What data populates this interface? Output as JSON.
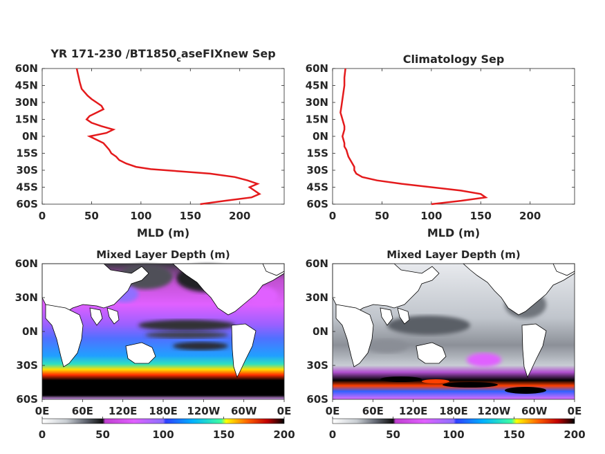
{
  "chart_data": [
    {
      "type": "line",
      "title": "YR 171-230 /BT1850",
      "title_sub": "c",
      "title_rest": "aseFIXnew Sep",
      "xlabel": "MLD (m)",
      "xlim": [
        0,
        245
      ],
      "ylim": [
        -60,
        60
      ],
      "xticks": [
        "0",
        "50",
        "100",
        "150",
        "200"
      ],
      "yticks": [
        "60N",
        "45N",
        "30N",
        "15N",
        "0N",
        "15S",
        "30S",
        "45S",
        "60S"
      ],
      "color": "#e41a1c",
      "series": [
        {
          "x": [
            160,
            185,
            212,
            220,
            215,
            210,
            218,
            208,
            195,
            170,
            140,
            110,
            95,
            85,
            78,
            75,
            70,
            68,
            65,
            62,
            55,
            48,
            65,
            72,
            60,
            50,
            45,
            48,
            55,
            62,
            60,
            55,
            50,
            46,
            40,
            38,
            37,
            36,
            35
          ],
          "y": [
            -60,
            -57,
            -54,
            -51,
            -48,
            -45,
            -42,
            -39,
            -36,
            -33,
            -31,
            -29,
            -27,
            -24,
            -21,
            -18,
            -15,
            -12,
            -9,
            -6,
            -3,
            0,
            3,
            6,
            9,
            12,
            15,
            18,
            21,
            24,
            27,
            30,
            33,
            36,
            42,
            48,
            52,
            56,
            60
          ]
        }
      ]
    },
    {
      "type": "line",
      "title": "Climatology Sep",
      "xlabel": "MLD (m)",
      "xlim": [
        0,
        245
      ],
      "ylim": [
        -60,
        60
      ],
      "xticks": [
        "0",
        "50",
        "100",
        "150",
        "200"
      ],
      "yticks": [
        "60N",
        "45N",
        "30N",
        "15N",
        "0N",
        "15S",
        "30S",
        "45S",
        "60S"
      ],
      "color": "#e41a1c",
      "series": [
        {
          "x": [
            100,
            130,
            155,
            150,
            130,
            100,
            70,
            45,
            30,
            24,
            22,
            22,
            20,
            18,
            16,
            15,
            14,
            12,
            12,
            11,
            10,
            11,
            12,
            12,
            11,
            10,
            9,
            8,
            9,
            10,
            11,
            12,
            12,
            13
          ],
          "y": [
            -60,
            -57,
            -54,
            -51,
            -48,
            -45,
            -42,
            -39,
            -36,
            -33,
            -30,
            -27,
            -24,
            -21,
            -18,
            -15,
            -12,
            -9,
            -6,
            -3,
            0,
            3,
            6,
            9,
            12,
            15,
            18,
            21,
            27,
            33,
            39,
            45,
            52,
            60
          ]
        }
      ]
    },
    {
      "type": "heatmap",
      "title": "Mixed Layer Depth (m)",
      "yticks": [
        "60N",
        "30N",
        "0N",
        "30S",
        "60S"
      ],
      "xticks": [
        "0E",
        "60E",
        "120E",
        "180E",
        "120W",
        "60W",
        "0E"
      ],
      "colorbar": {
        "ticks": [
          "0",
          "50",
          "100",
          "150",
          "200"
        ],
        "range": [
          0,
          200
        ]
      }
    },
    {
      "type": "heatmap",
      "title": "Mixed Layer Depth (m)",
      "yticks": [
        "60N",
        "30N",
        "0N",
        "30S",
        "60S"
      ],
      "xticks": [
        "0E",
        "60E",
        "120E",
        "180E",
        "120W",
        "60W",
        "0E"
      ],
      "colorbar": {
        "ticks": [
          "0",
          "50",
          "100",
          "150",
          "200"
        ],
        "range": [
          0,
          200
        ]
      }
    }
  ],
  "colormap": [
    "#ffffff",
    "#c8cdd2",
    "#8a8e95",
    "#404045",
    "#1a1a1a",
    "#b040c0",
    "#e060ff",
    "#a070ff",
    "#3050ff",
    "#00a0ff",
    "#00e0e0",
    "#40ff80",
    "#ffff00",
    "#ff8000",
    "#ff0000",
    "#8b0000",
    "#000000"
  ]
}
